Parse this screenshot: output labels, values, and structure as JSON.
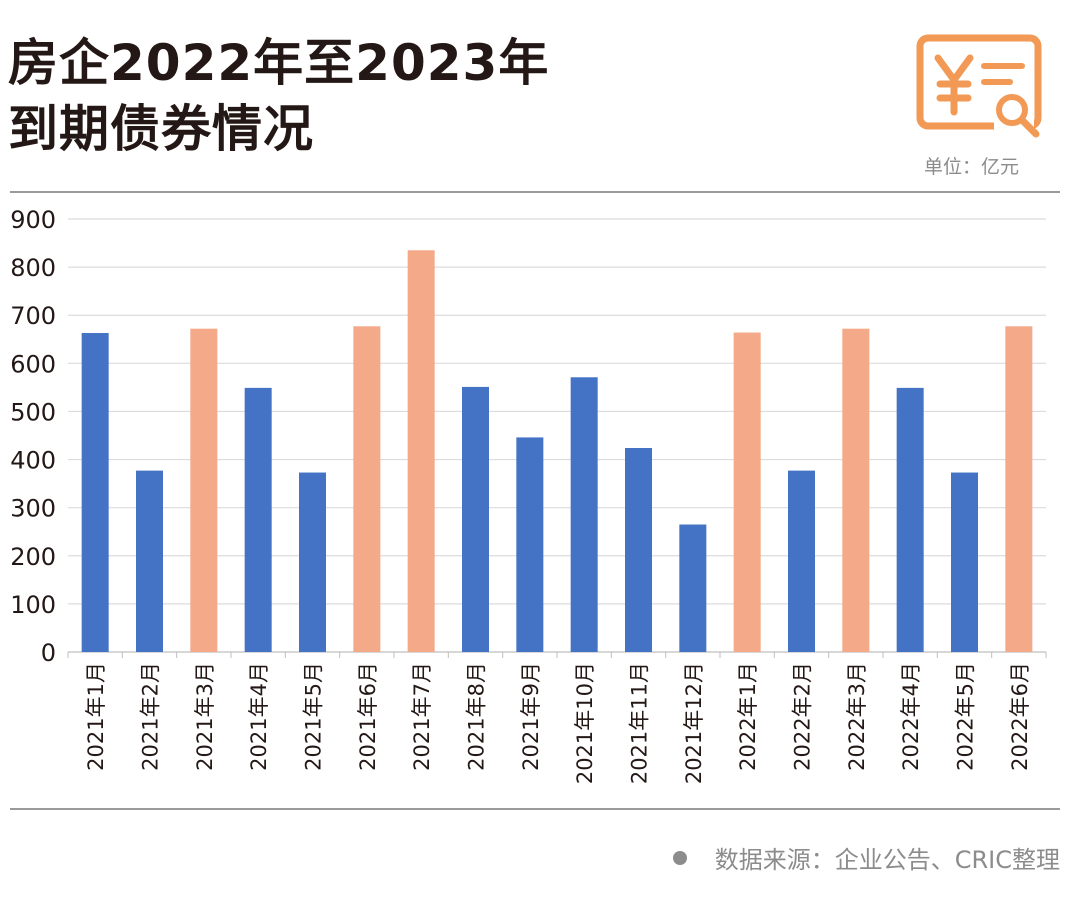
{
  "header": {
    "title_line1": "房企2022年至2023年",
    "title_line2": "到期债券情况",
    "unit_label": "单位：亿元"
  },
  "footer": {
    "source": "数据来源：企业公告、CRIC整理"
  },
  "colors": {
    "blue": "#4472C4",
    "orange": "#F4A988",
    "logo_orange": "#F29A55",
    "grid": "#dcdcdc",
    "text": "#231815"
  },
  "icons": {
    "logo": "yuan-bill-search-icon"
  },
  "chart_data": {
    "type": "bar",
    "title": "房企2022年至2023年到期债券情况",
    "ylabel": "",
    "xlabel": "",
    "ylim": [
      0,
      900
    ],
    "yticks": [
      0,
      100,
      200,
      300,
      400,
      500,
      600,
      700,
      800,
      900
    ],
    "grid": true,
    "categories": [
      "2021年1月",
      "2021年2月",
      "2021年3月",
      "2021年4月",
      "2021年5月",
      "2021年6月",
      "2021年7月",
      "2021年8月",
      "2021年9月",
      "2021年10月",
      "2021年11月",
      "2021年12月",
      "2022年1月",
      "2022年2月",
      "2022年3月",
      "2022年4月",
      "2022年5月",
      "2022年6月"
    ],
    "values": [
      663,
      377,
      672,
      549,
      373,
      677,
      835,
      551,
      446,
      571,
      424,
      265,
      664,
      377,
      672,
      549,
      373,
      677
    ],
    "bar_colors": [
      "blue",
      "blue",
      "orange",
      "blue",
      "blue",
      "orange",
      "orange",
      "blue",
      "blue",
      "blue",
      "blue",
      "blue",
      "orange",
      "blue",
      "orange",
      "blue",
      "blue",
      "orange"
    ]
  }
}
